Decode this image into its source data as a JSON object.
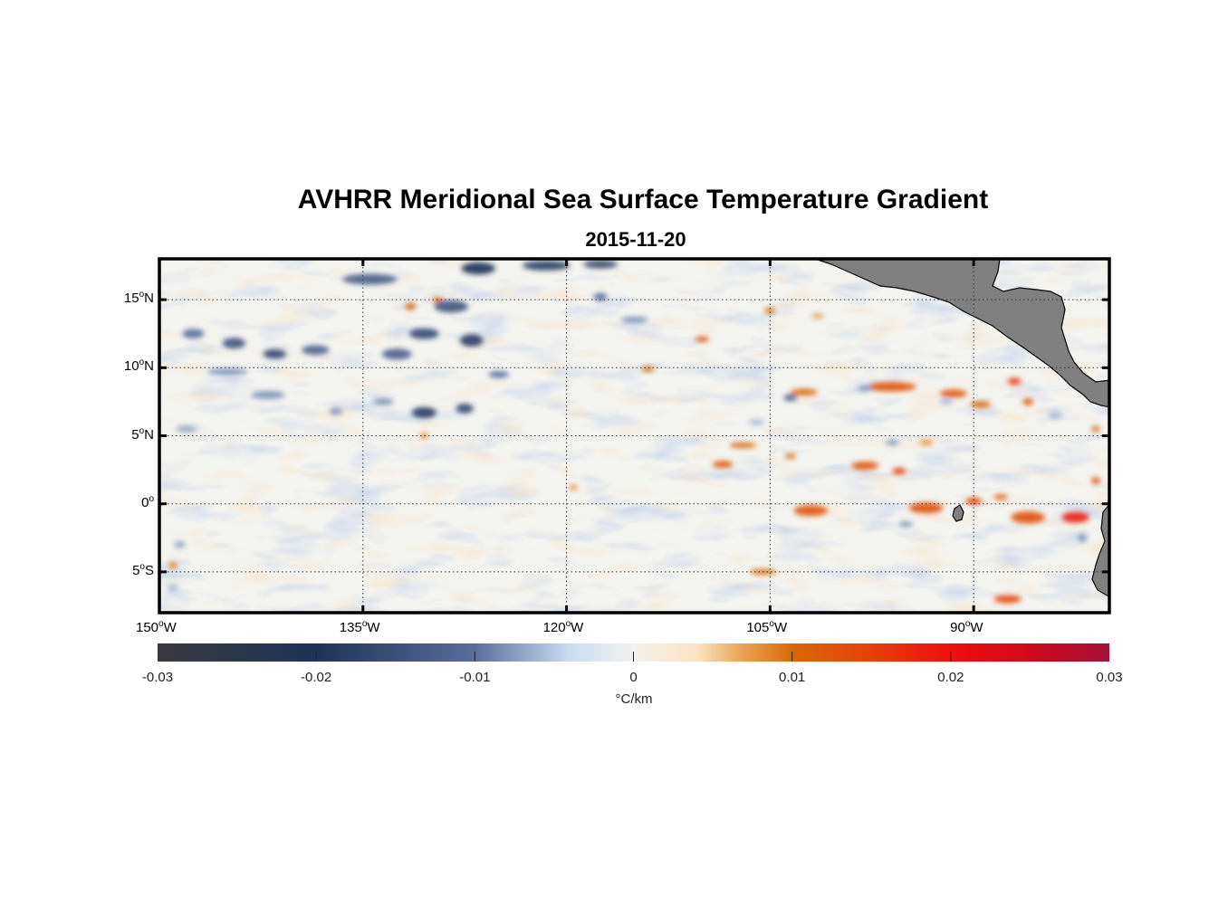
{
  "title": "AVHRR Meridional Sea Surface Temperature Gradient",
  "subtitle": "2015-11-20",
  "chart_data": {
    "type": "heatmap",
    "title": "AVHRR Meridional Sea Surface Temperature Gradient",
    "subtitle": "2015-11-20",
    "lon_range": [
      -150,
      -80
    ],
    "lat_range": [
      -8,
      18
    ],
    "lon_ticks": [
      {
        "value": -150,
        "deg": "150",
        "hemi": "W"
      },
      {
        "value": -135,
        "deg": "135",
        "hemi": "W"
      },
      {
        "value": -120,
        "deg": "120",
        "hemi": "W"
      },
      {
        "value": -105,
        "deg": "105",
        "hemi": "W"
      },
      {
        "value": -90,
        "deg": "90",
        "hemi": "W"
      }
    ],
    "lat_ticks": [
      {
        "value": 15,
        "deg": "15",
        "hemi": "N"
      },
      {
        "value": 10,
        "deg": "10",
        "hemi": "N"
      },
      {
        "value": 5,
        "deg": "5",
        "hemi": "N"
      },
      {
        "value": 0,
        "deg": "0",
        "hemi": ""
      },
      {
        "value": -5,
        "deg": "5",
        "hemi": "S"
      }
    ],
    "grid": true,
    "land_color": "#808080",
    "colorbar": {
      "range": [
        -0.03,
        0.03
      ],
      "ticks": [
        {
          "value": -0.03,
          "label": "-0.03"
        },
        {
          "value": -0.02,
          "label": "-0.02"
        },
        {
          "value": -0.01,
          "label": "-0.01"
        },
        {
          "value": 0,
          "label": "0"
        },
        {
          "value": 0.01,
          "label": "0.01"
        },
        {
          "value": 0.02,
          "label": "0.02"
        },
        {
          "value": 0.03,
          "label": "0.03"
        }
      ],
      "unit": "°C/km",
      "stops": [
        {
          "value": -0.03,
          "color": "#3a3a3e"
        },
        {
          "value": -0.02,
          "color": "#1f3458"
        },
        {
          "value": -0.01,
          "color": "#5a6e9c"
        },
        {
          "value": -0.004,
          "color": "#c9dcf0"
        },
        {
          "value": 0,
          "color": "#f2f2ee"
        },
        {
          "value": 0.004,
          "color": "#fbe3c0"
        },
        {
          "value": 0.007,
          "color": "#e8a050"
        },
        {
          "value": 0.01,
          "color": "#d66a08"
        },
        {
          "value": 0.015,
          "color": "#e8400a"
        },
        {
          "value": 0.02,
          "color": "#ee1010"
        },
        {
          "value": 0.025,
          "color": "#d00a1a"
        },
        {
          "value": 0.03,
          "color": "#a5123a"
        }
      ]
    },
    "features": [
      {
        "lon": -126.5,
        "lat": 17.3,
        "value": -0.02,
        "w": 2.5,
        "h": 0.9
      },
      {
        "lon": -121.5,
        "lat": 17.5,
        "value": -0.018,
        "w": 3.5,
        "h": 0.7
      },
      {
        "lon": -117.5,
        "lat": 17.6,
        "value": -0.016,
        "w": 2.5,
        "h": 0.6
      },
      {
        "lon": -134.5,
        "lat": 16.5,
        "value": -0.012,
        "w": 4.0,
        "h": 0.8
      },
      {
        "lon": -128.5,
        "lat": 14.5,
        "value": -0.014,
        "w": 2.5,
        "h": 0.9
      },
      {
        "lon": -127.0,
        "lat": 12.0,
        "value": -0.018,
        "w": 1.7,
        "h": 0.9
      },
      {
        "lon": -130.5,
        "lat": 12.5,
        "value": -0.016,
        "w": 2.2,
        "h": 0.8
      },
      {
        "lon": -132.5,
        "lat": 11.0,
        "value": -0.012,
        "w": 2.2,
        "h": 0.8
      },
      {
        "lon": -144.5,
        "lat": 11.8,
        "value": -0.014,
        "w": 1.7,
        "h": 0.8
      },
      {
        "lon": -141.5,
        "lat": 11.0,
        "value": -0.016,
        "w": 1.7,
        "h": 0.7
      },
      {
        "lon": -138.5,
        "lat": 11.3,
        "value": -0.012,
        "w": 2.0,
        "h": 0.7
      },
      {
        "lon": -147.5,
        "lat": 12.5,
        "value": -0.01,
        "w": 1.6,
        "h": 0.7
      },
      {
        "lon": -125.0,
        "lat": 9.5,
        "value": -0.01,
        "w": 1.5,
        "h": 0.5
      },
      {
        "lon": -115.0,
        "lat": 13.5,
        "value": -0.008,
        "w": 2.0,
        "h": 0.5
      },
      {
        "lon": -117.5,
        "lat": 15.2,
        "value": -0.01,
        "w": 1.0,
        "h": 0.6
      },
      {
        "lon": -130.5,
        "lat": 6.7,
        "value": -0.018,
        "w": 1.8,
        "h": 0.8
      },
      {
        "lon": -127.5,
        "lat": 7.0,
        "value": -0.016,
        "w": 1.3,
        "h": 0.7
      },
      {
        "lon": -142.0,
        "lat": 8.0,
        "value": -0.008,
        "w": 2.5,
        "h": 0.6
      },
      {
        "lon": -145.0,
        "lat": 9.7,
        "value": -0.008,
        "w": 3.0,
        "h": 0.5
      },
      {
        "lon": -133.5,
        "lat": 7.5,
        "value": -0.008,
        "w": 1.5,
        "h": 0.5
      },
      {
        "lon": -137.0,
        "lat": 6.8,
        "value": -0.008,
        "w": 1.0,
        "h": 0.5
      },
      {
        "lon": -148.0,
        "lat": 5.5,
        "value": -0.007,
        "w": 1.5,
        "h": 0.5
      },
      {
        "lon": -103.5,
        "lat": 7.8,
        "value": -0.012,
        "w": 1.0,
        "h": 0.5
      },
      {
        "lon": -98.0,
        "lat": 8.5,
        "value": -0.008,
        "w": 1.0,
        "h": 0.4
      },
      {
        "lon": -96.0,
        "lat": 4.5,
        "value": -0.008,
        "w": 1.0,
        "h": 0.4
      },
      {
        "lon": -106.0,
        "lat": 6.0,
        "value": -0.006,
        "w": 1.2,
        "h": 0.4
      },
      {
        "lon": -95.0,
        "lat": -1.5,
        "value": -0.008,
        "w": 1.0,
        "h": 0.4
      },
      {
        "lon": -92.0,
        "lat": 7.5,
        "value": -0.006,
        "w": 1.0,
        "h": 0.4
      },
      {
        "lon": -84.0,
        "lat": 6.5,
        "value": -0.006,
        "w": 1.0,
        "h": 0.5
      },
      {
        "lon": -148.5,
        "lat": -3.0,
        "value": -0.007,
        "w": 0.8,
        "h": 0.5
      },
      {
        "lon": -149.0,
        "lat": -6.2,
        "value": -0.006,
        "w": 0.8,
        "h": 0.5
      },
      {
        "lon": -82.0,
        "lat": -2.5,
        "value": -0.008,
        "w": 0.7,
        "h": 0.6
      },
      {
        "lon": -131.5,
        "lat": 14.5,
        "value": 0.011,
        "w": 0.8,
        "h": 0.5
      },
      {
        "lon": -129.5,
        "lat": 15.0,
        "value": 0.01,
        "w": 0.8,
        "h": 0.4
      },
      {
        "lon": -110.0,
        "lat": 12.1,
        "value": 0.013,
        "w": 1.0,
        "h": 0.4
      },
      {
        "lon": -114.0,
        "lat": 9.9,
        "value": 0.01,
        "w": 0.9,
        "h": 0.4
      },
      {
        "lon": -105.0,
        "lat": 14.2,
        "value": 0.009,
        "w": 0.8,
        "h": 0.5
      },
      {
        "lon": -101.5,
        "lat": 13.8,
        "value": 0.007,
        "w": 0.9,
        "h": 0.4
      },
      {
        "lon": -102.5,
        "lat": 8.2,
        "value": 0.01,
        "w": 2.0,
        "h": 0.5
      },
      {
        "lon": -96.0,
        "lat": 8.6,
        "value": 0.012,
        "w": 3.5,
        "h": 0.7
      },
      {
        "lon": -91.5,
        "lat": 8.1,
        "value": 0.012,
        "w": 2.0,
        "h": 0.6
      },
      {
        "lon": -89.5,
        "lat": 7.3,
        "value": 0.01,
        "w": 1.5,
        "h": 0.5
      },
      {
        "lon": -87.0,
        "lat": 9.0,
        "value": 0.016,
        "w": 1.0,
        "h": 0.5
      },
      {
        "lon": -86.0,
        "lat": 7.5,
        "value": 0.012,
        "w": 0.8,
        "h": 0.5
      },
      {
        "lon": -107.0,
        "lat": 4.3,
        "value": 0.011,
        "w": 2.0,
        "h": 0.4
      },
      {
        "lon": -108.5,
        "lat": 2.9,
        "value": 0.012,
        "w": 1.5,
        "h": 0.5
      },
      {
        "lon": -103.5,
        "lat": 3.5,
        "value": 0.01,
        "w": 0.8,
        "h": 0.4
      },
      {
        "lon": -98.0,
        "lat": 2.8,
        "value": 0.013,
        "w": 2.0,
        "h": 0.6
      },
      {
        "lon": -95.5,
        "lat": 2.4,
        "value": 0.014,
        "w": 1.0,
        "h": 0.5
      },
      {
        "lon": -93.5,
        "lat": 4.5,
        "value": 0.008,
        "w": 1.0,
        "h": 0.4
      },
      {
        "lon": -102.0,
        "lat": -0.5,
        "value": 0.012,
        "w": 2.5,
        "h": 0.8
      },
      {
        "lon": -93.5,
        "lat": -0.3,
        "value": 0.013,
        "w": 2.5,
        "h": 0.8
      },
      {
        "lon": -90.0,
        "lat": 0.2,
        "value": 0.015,
        "w": 1.2,
        "h": 0.5
      },
      {
        "lon": -88.0,
        "lat": 0.5,
        "value": 0.011,
        "w": 1.0,
        "h": 0.4
      },
      {
        "lon": -86.0,
        "lat": -1.0,
        "value": 0.013,
        "w": 2.5,
        "h": 0.9
      },
      {
        "lon": -82.5,
        "lat": -1.0,
        "value": 0.018,
        "w": 2.0,
        "h": 0.8
      },
      {
        "lon": -81.0,
        "lat": 1.7,
        "value": 0.012,
        "w": 0.7,
        "h": 0.5
      },
      {
        "lon": -81.0,
        "lat": 5.5,
        "value": 0.01,
        "w": 0.7,
        "h": 0.4
      },
      {
        "lon": -87.5,
        "lat": -7.0,
        "value": 0.014,
        "w": 2.0,
        "h": 0.6
      },
      {
        "lon": -105.5,
        "lat": -5.0,
        "value": 0.01,
        "w": 2.0,
        "h": 0.4
      },
      {
        "lon": -88.0,
        "lat": 13.2,
        "value": 0.009,
        "w": 0.6,
        "h": 0.4
      },
      {
        "lon": -130.5,
        "lat": 5.0,
        "value": 0.009,
        "w": 0.6,
        "h": 0.4
      },
      {
        "lon": -119.5,
        "lat": 1.2,
        "value": 0.008,
        "w": 0.6,
        "h": 0.4
      },
      {
        "lon": -149.0,
        "lat": -4.5,
        "value": 0.009,
        "w": 0.6,
        "h": 0.5
      }
    ]
  }
}
